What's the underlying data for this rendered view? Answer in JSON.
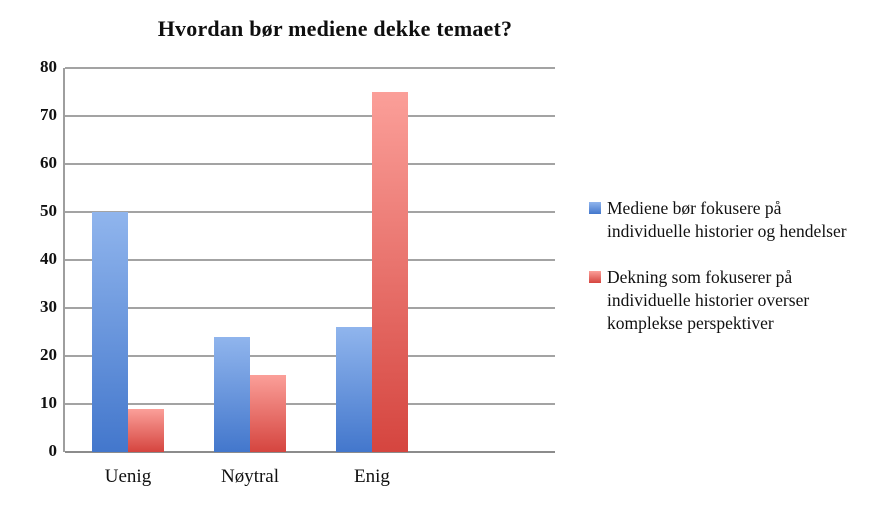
{
  "chart_data": {
    "type": "bar",
    "title": "Hvordan bør mediene dekke temaet?",
    "categories": [
      "Uenig",
      "Nøytral",
      "Enig"
    ],
    "series": [
      {
        "name": "Mediene bør fokusere på individuelle historier og hendelser",
        "values": [
          50,
          24,
          26
        ],
        "color_top": "#90b5ed",
        "color_bottom": "#4377cc"
      },
      {
        "name": "Dekning som fokuserer på individuelle historier overser komplekse perspektiver",
        "values": [
          9,
          16,
          75
        ],
        "color_top": "#fb9f99",
        "color_bottom": "#d5453f"
      }
    ],
    "ylim": [
      0,
      80
    ],
    "yticks": [
      0,
      10,
      20,
      30,
      40,
      50,
      60,
      70,
      80
    ],
    "xlabel": "",
    "ylabel": "",
    "grid": true,
    "legend_position": "right",
    "colors": {
      "gridline": "#a3a3a3",
      "axis_line": "#9e9e9e",
      "background": "#ffffff",
      "text": "#111111"
    }
  }
}
